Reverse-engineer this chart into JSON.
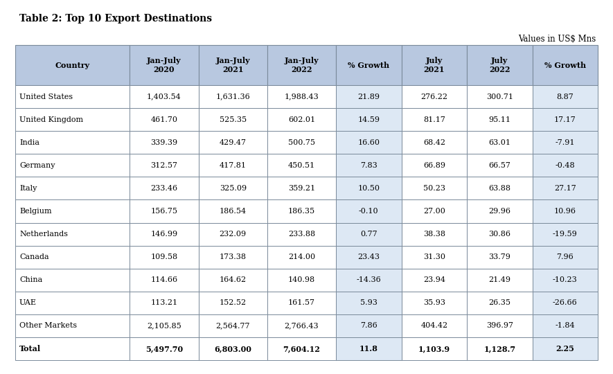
{
  "title": "Table 2: Top 10 Export Destinations",
  "subtitle": "Values in US$ Mns",
  "header_bg": "#b8c8e0",
  "cell_bg_normal": "#ffffff",
  "cell_bg_shaded": "#dde8f4",
  "border_color": "#7a8a9a",
  "columns": [
    "Country",
    "Jan-July\n2020",
    "Jan-July\n2021",
    "Jan-July\n2022",
    "% Growth",
    "July\n2021",
    "July\n2022",
    "% Growth"
  ],
  "col_shade": [
    false,
    false,
    false,
    false,
    true,
    false,
    false,
    true
  ],
  "col_widths_rel": [
    1.75,
    1.05,
    1.05,
    1.05,
    1.0,
    1.0,
    1.0,
    1.0
  ],
  "rows": [
    [
      "United States",
      "1,403.54",
      "1,631.36",
      "1,988.43",
      "21.89",
      "276.22",
      "300.71",
      "8.87"
    ],
    [
      "United Kingdom",
      "461.70",
      "525.35",
      "602.01",
      "14.59",
      "81.17",
      "95.11",
      "17.17"
    ],
    [
      "India",
      "339.39",
      "429.47",
      "500.75",
      "16.60",
      "68.42",
      "63.01",
      "-7.91"
    ],
    [
      "Germany",
      "312.57",
      "417.81",
      "450.51",
      "7.83",
      "66.89",
      "66.57",
      "-0.48"
    ],
    [
      "Italy",
      "233.46",
      "325.09",
      "359.21",
      "10.50",
      "50.23",
      "63.88",
      "27.17"
    ],
    [
      "Belgium",
      "156.75",
      "186.54",
      "186.35",
      "-0.10",
      "27.00",
      "29.96",
      "10.96"
    ],
    [
      "Netherlands",
      "146.99",
      "232.09",
      "233.88",
      "0.77",
      "38.38",
      "30.86",
      "-19.59"
    ],
    [
      "Canada",
      "109.58",
      "173.38",
      "214.00",
      "23.43",
      "31.30",
      "33.79",
      "7.96"
    ],
    [
      "China",
      "114.66",
      "164.62",
      "140.98",
      "-14.36",
      "23.94",
      "21.49",
      "-10.23"
    ],
    [
      "UAE",
      "113.21",
      "152.52",
      "161.57",
      "5.93",
      "35.93",
      "26.35",
      "-26.66"
    ],
    [
      "Other Markets",
      "2,105.85",
      "2,564.77",
      "2,766.43",
      "7.86",
      "404.42",
      "396.97",
      "-1.84"
    ]
  ],
  "total_row": [
    "Total",
    "5,497.70",
    "6,803.00",
    "7,604.12",
    "11.8",
    "1,103.9",
    "1,128.7",
    "2.25"
  ],
  "title_fontsize": 10,
  "subtitle_fontsize": 8.5,
  "header_fontsize": 8,
  "cell_fontsize": 8
}
